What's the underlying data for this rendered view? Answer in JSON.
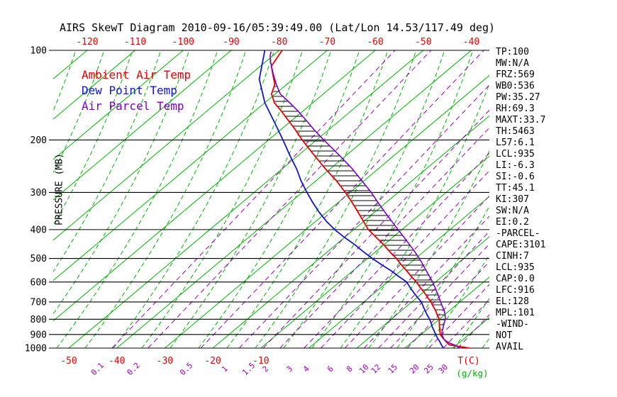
{
  "title": "AIRS SkewT Diagram 2010-09-16/05:39:49.00 (Lat/Lon 14.53/117.49 deg)",
  "colors": {
    "temp": "#e60000",
    "dewpoint": "#1414cc",
    "parcel": "#7d00c8",
    "isotherm": "#00b400",
    "moist_adiabat": "#00b400",
    "mixing_ratio": "#9a00b4",
    "pressure_line": "#000000",
    "hatch": "#000000",
    "title_text": "#000000"
  },
  "legend": [
    {
      "label": "Ambient Air Temp",
      "color_key": "temp"
    },
    {
      "label": "Dew Point Temp",
      "color_key": "dewpoint"
    },
    {
      "label": "Air Parcel Temp",
      "color_key": "parcel"
    }
  ],
  "axes": {
    "pressure_axis_label": "PRESSURE (MB)",
    "pressure_ticks": [
      100,
      200,
      300,
      400,
      500,
      600,
      700,
      800,
      900,
      1000
    ],
    "top_temp_ticks": [
      -120,
      -110,
      -100,
      -90,
      -80,
      -70,
      -60,
      -50,
      -40
    ],
    "bottom_temp_ticks": [
      -50,
      -40,
      -30,
      -20,
      -10
    ],
    "temp_unit_label": "T(C)",
    "mixing_unit_label": "(g/kg)"
  },
  "stats_panel": [
    "TP:100",
    "MW:N/A",
    "FRZ:569",
    "WB0:536",
    "PW:35.27",
    "RH:69.3",
    "MAXT:33.7",
    "TH:5463",
    "L57:6.1",
    "LCL:935",
    "LI:-6.3",
    "SI:-0.6",
    "TT:45.1",
    "KI:307",
    "SW:N/A",
    "EI:0.2",
    "-PARCEL-",
    "CAPE:3101",
    "CINH:7",
    "LCL:935",
    "CAP:0.0",
    "LFC:916",
    "EL:128",
    "MPL:101",
    "-WIND-",
    "NOT",
    "AVAIL"
  ],
  "chart_data": {
    "type": "line",
    "variant": "skew-t-log-p",
    "title": "AIRS SkewT Diagram 2010-09-16/05:39:49.00 (Lat/Lon 14.53/117.49 deg)",
    "xlabel": "T(C)",
    "ylabel": "PRESSURE (MB)",
    "pressure_range_mb": [
      100,
      1000
    ],
    "pressure_scale": "log",
    "top_axis_temp_c": [
      -120,
      -40
    ],
    "bottom_axis_temp_c": [
      -50,
      40
    ],
    "isotherm_step_c": 10,
    "grid": {
      "isotherms": "green solid",
      "moist_adiabats": "green dashed",
      "mixing_ratio": "purple dashed",
      "pressure_levels": "black solid"
    },
    "cape_area_hatched_between": [
      "Air Parcel Temp",
      "Ambient Air Temp"
    ],
    "mixing_ratio_lines": [
      {
        "value": 0.1,
        "td_1000": -41
      },
      {
        "value": 0.2,
        "td_1000": -33.5
      },
      {
        "value": 0.5,
        "td_1000": -22.5
      },
      {
        "value": 1,
        "td_1000": -14.5
      },
      {
        "value": 1.5,
        "td_1000": -9.5
      },
      {
        "value": 2,
        "td_1000": -6
      },
      {
        "value": 3,
        "td_1000": -1
      },
      {
        "value": 4,
        "td_1000": 2.5
      },
      {
        "value": 6,
        "td_1000": 7.5
      },
      {
        "value": 8,
        "td_1000": 11.5
      },
      {
        "value": 10,
        "td_1000": 14.5
      },
      {
        "value": 12,
        "td_1000": 17
      },
      {
        "value": 15,
        "td_1000": 20.5
      },
      {
        "value": 20,
        "td_1000": 25
      },
      {
        "value": 25,
        "td_1000": 28
      },
      {
        "value": 30,
        "td_1000": 31
      }
    ],
    "series": [
      {
        "name": "Ambient Air Temp",
        "color_key": "temp",
        "points": [
          [
            1000,
            33.5
          ],
          [
            988,
            31
          ],
          [
            975,
            28.4
          ],
          [
            950,
            26.9
          ],
          [
            925,
            25.4
          ],
          [
            900,
            24
          ],
          [
            875,
            23
          ],
          [
            850,
            22
          ],
          [
            825,
            21
          ],
          [
            800,
            20
          ],
          [
            775,
            18.6
          ],
          [
            750,
            17.2
          ],
          [
            725,
            15.6
          ],
          [
            700,
            14
          ],
          [
            675,
            12.1
          ],
          [
            650,
            10.2
          ],
          [
            625,
            8.1
          ],
          [
            600,
            6
          ],
          [
            575,
            3.6
          ],
          [
            550,
            1.2
          ],
          [
            525,
            -1.4
          ],
          [
            500,
            -4
          ],
          [
            475,
            -7
          ],
          [
            450,
            -10
          ],
          [
            425,
            -13.4
          ],
          [
            400,
            -17
          ],
          [
            375,
            -20.1
          ],
          [
            350,
            -23.4
          ],
          [
            325,
            -27
          ],
          [
            300,
            -31
          ],
          [
            275,
            -35.6
          ],
          [
            250,
            -41
          ],
          [
            225,
            -46.7
          ],
          [
            200,
            -53
          ],
          [
            185,
            -56.9
          ],
          [
            175,
            -59.8
          ],
          [
            160,
            -64.5
          ],
          [
            150,
            -68
          ],
          [
            140,
            -70.8
          ],
          [
            130,
            -72.5
          ],
          [
            120,
            -75.5
          ],
          [
            113,
            -77.7
          ],
          [
            100,
            -79.4
          ]
        ]
      },
      {
        "name": "Dew Point Temp",
        "color_key": "dewpoint",
        "points": [
          [
            1000,
            28
          ],
          [
            975,
            26.8
          ],
          [
            950,
            25.6
          ],
          [
            925,
            24.3
          ],
          [
            900,
            23
          ],
          [
            875,
            21.8
          ],
          [
            850,
            20.5
          ],
          [
            825,
            19.3
          ],
          [
            800,
            18
          ],
          [
            775,
            16.5
          ],
          [
            750,
            15
          ],
          [
            725,
            13.5
          ],
          [
            700,
            12
          ],
          [
            675,
            10
          ],
          [
            650,
            8
          ],
          [
            625,
            6
          ],
          [
            600,
            4
          ],
          [
            575,
            1
          ],
          [
            550,
            -2
          ],
          [
            525,
            -5.5
          ],
          [
            500,
            -9
          ],
          [
            475,
            -12.5
          ],
          [
            450,
            -16
          ],
          [
            425,
            -20
          ],
          [
            400,
            -24
          ],
          [
            375,
            -27.8
          ],
          [
            350,
            -31.5
          ],
          [
            325,
            -35.2
          ],
          [
            300,
            -39
          ],
          [
            275,
            -43
          ],
          [
            250,
            -47
          ],
          [
            225,
            -51.8
          ],
          [
            200,
            -57
          ],
          [
            175,
            -63
          ],
          [
            150,
            -70
          ],
          [
            125,
            -77
          ],
          [
            100,
            -83
          ]
        ]
      },
      {
        "name": "Air Parcel Temp",
        "color_key": "parcel",
        "points": [
          [
            1000,
            31.5
          ],
          [
            980,
            29.9
          ],
          [
            960,
            27.9
          ],
          [
            940,
            26.3
          ],
          [
            935,
            26
          ],
          [
            900,
            24.3
          ],
          [
            875,
            23.5
          ],
          [
            850,
            22.8
          ],
          [
            825,
            22
          ],
          [
            800,
            21.3
          ],
          [
            775,
            20.2
          ],
          [
            750,
            19
          ],
          [
            725,
            17.5
          ],
          [
            700,
            16
          ],
          [
            675,
            14.5
          ],
          [
            650,
            12.9
          ],
          [
            625,
            11.2
          ],
          [
            600,
            9.4
          ],
          [
            575,
            7.4
          ],
          [
            550,
            5.3
          ],
          [
            525,
            3.1
          ],
          [
            500,
            0.8
          ],
          [
            475,
            -1.8
          ],
          [
            450,
            -4.6
          ],
          [
            425,
            -7.6
          ],
          [
            400,
            -10.8
          ],
          [
            375,
            -14.2
          ],
          [
            350,
            -17.8
          ],
          [
            325,
            -21.6
          ],
          [
            300,
            -25.6
          ],
          [
            275,
            -30.3
          ],
          [
            250,
            -35.4
          ],
          [
            225,
            -41.5
          ],
          [
            200,
            -48.5
          ],
          [
            185,
            -53
          ],
          [
            175,
            -56
          ],
          [
            160,
            -61
          ],
          [
            150,
            -64.8
          ],
          [
            140,
            -69
          ],
          [
            130,
            -72.2
          ],
          [
            120,
            -75.4
          ],
          [
            113,
            -77.7
          ],
          [
            108,
            -79.4
          ],
          [
            104,
            -80.6
          ],
          [
            101,
            -81.4
          ]
        ]
      }
    ]
  }
}
